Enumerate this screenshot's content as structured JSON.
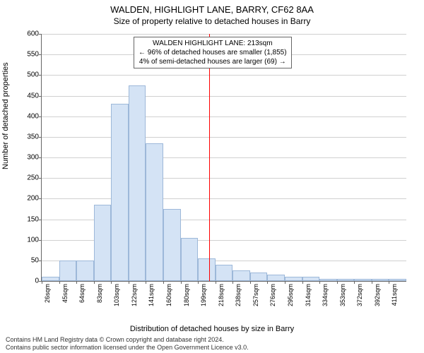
{
  "title": "WALDEN, HIGHLIGHT LANE, BARRY, CF62 8AA",
  "subtitle": "Size of property relative to detached houses in Barry",
  "ylabel": "Number of detached properties",
  "xlabel": "Distribution of detached houses by size in Barry",
  "credit_line1": "Contains HM Land Registry data © Crown copyright and database right 2024.",
  "credit_line2": "Contains public sector information licensed under the Open Government Licence v3.0.",
  "chart": {
    "type": "histogram",
    "ylim": [
      0,
      600
    ],
    "ytick_step": 50,
    "yticks": [
      0,
      50,
      100,
      150,
      200,
      250,
      300,
      350,
      400,
      450,
      500,
      550,
      600
    ],
    "xticks": [
      "26sqm",
      "45sqm",
      "64sqm",
      "83sqm",
      "103sqm",
      "122sqm",
      "141sqm",
      "160sqm",
      "180sqm",
      "199sqm",
      "218sqm",
      "238sqm",
      "257sqm",
      "276sqm",
      "295sqm",
      "314sqm",
      "334sqm",
      "353sqm",
      "372sqm",
      "392sqm",
      "411sqm"
    ],
    "bar_values": [
      10,
      50,
      50,
      185,
      430,
      475,
      335,
      175,
      105,
      55,
      40,
      25,
      20,
      15,
      10,
      10,
      5,
      5,
      5,
      5,
      5
    ],
    "bar_fill": "#d4e3f5",
    "bar_border": "#9db8d9",
    "grid_color": "#d0d0d0",
    "background_color": "#ffffff",
    "marker_x_index": 9.65,
    "marker_color": "#ff0000",
    "annot": {
      "line1": "WALDEN HIGHLIGHT LANE: 213sqm",
      "line2": "← 96% of detached houses are smaller (1,855)",
      "line3": "4% of semi-detached houses are larger (69) →"
    }
  }
}
